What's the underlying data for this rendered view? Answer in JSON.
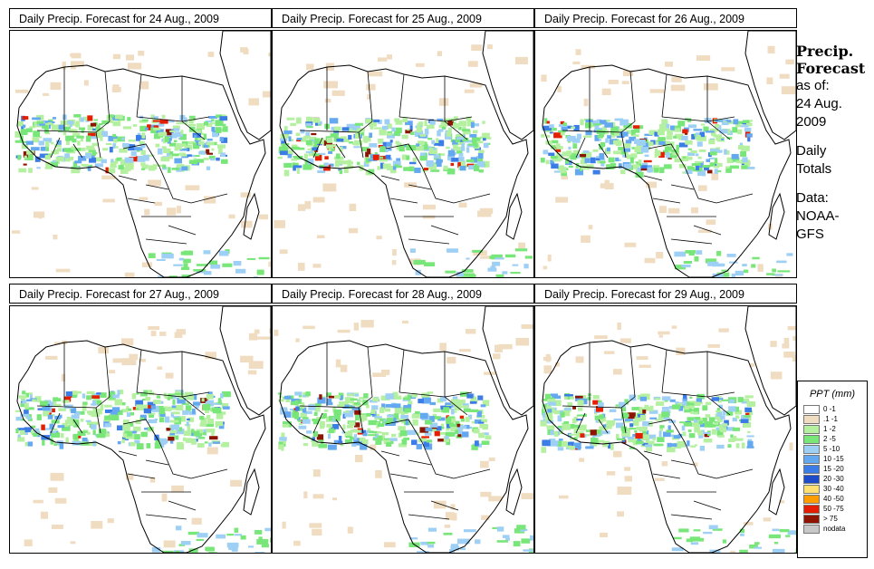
{
  "panels": [
    {
      "title": "Daily Precip. Forecast for  24 Aug., 2009",
      "day": "24"
    },
    {
      "title": "Daily Precip. Forecast for  25 Aug., 2009",
      "day": "25"
    },
    {
      "title": "Daily Precip. Forecast for  26 Aug., 2009",
      "day": "26"
    },
    {
      "title": "Daily Precip. Forecast for  27 Aug., 2009",
      "day": "27"
    },
    {
      "title": "Daily Precip. Forecast for  28 Aug., 2009",
      "day": "28"
    },
    {
      "title": "Daily Precip. Forecast for  29 Aug., 2009",
      "day": "29"
    }
  ],
  "side": {
    "heading_line1": "Precip.",
    "heading_line2": "Forecast",
    "asof_line1": "as of:",
    "asof_line2": "24 Aug.",
    "asof_line3": "2009",
    "totals_line1": "Daily",
    "totals_line2": "Totals",
    "data_line1": "Data:",
    "data_line2": "NOAA-",
    "data_line3": "GFS"
  },
  "legend": {
    "title": "PPT (mm)",
    "items": [
      {
        "label": "0 -1",
        "color": "#ffffff"
      },
      {
        "label": ".1 -1",
        "color": "#f0dcc0"
      },
      {
        "label": "1 -2",
        "color": "#b4f0a0"
      },
      {
        "label": "2 -5",
        "color": "#78e678"
      },
      {
        "label": "5 -10",
        "color": "#9ecff5"
      },
      {
        "label": "10 -15",
        "color": "#64a8f0"
      },
      {
        "label": "15 -20",
        "color": "#3c7ce6"
      },
      {
        "label": "20 -30",
        "color": "#1e4cc8"
      },
      {
        "label": "30 -40",
        "color": "#ffe070"
      },
      {
        "label": "40 -50",
        "color": "#ff9c00"
      },
      {
        "label": "50 -75",
        "color": "#e61e00"
      },
      {
        "label": "> 75",
        "color": "#8c1400"
      },
      {
        "label": "nodata",
        "color": "#c8c8c8"
      }
    ]
  }
}
